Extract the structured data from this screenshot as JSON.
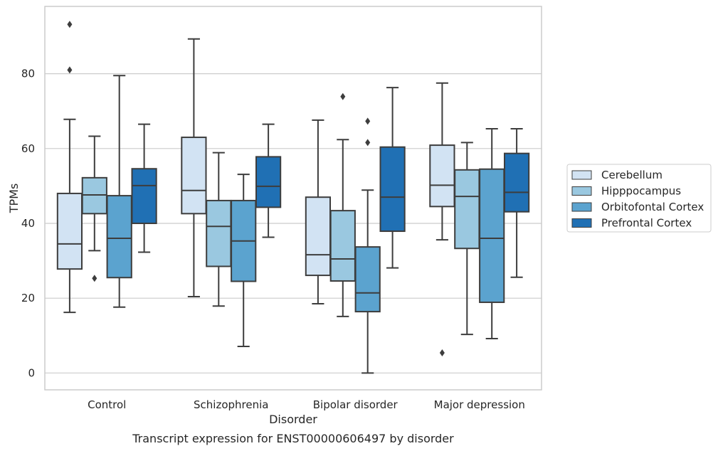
{
  "caption": "Transcript expression for ENST00000606497 by disorder",
  "colors": {
    "Cerebellum": "#d2e3f3",
    "Hipppocampus": "#9ac8e0",
    "Orbitofontal Cortex": "#5ba3cf",
    "Prefrontal Cortex": "#2070b4",
    "line": "#3d3d3d",
    "grid": "#cccccc"
  },
  "chart_data": {
    "type": "box",
    "title": "",
    "xlabel": "Disorder",
    "ylabel": "TPMs",
    "ylim": [
      -4.5,
      98
    ],
    "yticks": [
      0,
      20,
      40,
      60,
      80
    ],
    "grid": "horizontal",
    "legend_position": "right",
    "categories": [
      "Control",
      "Schizophrenia",
      "Bipolar disorder",
      "Major depression"
    ],
    "series": [
      {
        "name": "Cerebellum",
        "boxes": [
          {
            "whisker_low": 16.2,
            "q1": 27.8,
            "median": 34.5,
            "q3": 48.0,
            "whisker_high": 67.8,
            "outliers": [
              93.2,
              81.0
            ]
          },
          {
            "whisker_low": 20.4,
            "q1": 42.6,
            "median": 48.8,
            "q3": 63.0,
            "whisker_high": 89.3,
            "outliers": []
          },
          {
            "whisker_low": 18.5,
            "q1": 26.1,
            "median": 31.6,
            "q3": 47.0,
            "whisker_high": 67.6,
            "outliers": []
          },
          {
            "whisker_low": 35.6,
            "q1": 44.5,
            "median": 50.2,
            "q3": 60.9,
            "whisker_high": 77.5,
            "outliers": [
              5.4
            ]
          }
        ]
      },
      {
        "name": "Hipppocampus",
        "boxes": [
          {
            "whisker_low": 32.7,
            "q1": 42.6,
            "median": 47.6,
            "q3": 52.2,
            "whisker_high": 63.3,
            "outliers": [
              25.3
            ]
          },
          {
            "whisker_low": 17.9,
            "q1": 28.5,
            "median": 39.2,
            "q3": 46.1,
            "whisker_high": 58.9,
            "outliers": []
          },
          {
            "whisker_low": 15.1,
            "q1": 24.6,
            "median": 30.5,
            "q3": 43.4,
            "whisker_high": 62.4,
            "outliers": [
              73.9
            ]
          },
          {
            "whisker_low": 10.3,
            "q1": 33.3,
            "median": 47.2,
            "q3": 54.3,
            "whisker_high": 61.6,
            "outliers": []
          }
        ]
      },
      {
        "name": "Orbitofontal Cortex",
        "boxes": [
          {
            "whisker_low": 17.6,
            "q1": 25.5,
            "median": 36.0,
            "q3": 47.4,
            "whisker_high": 79.5,
            "outliers": []
          },
          {
            "whisker_low": 7.1,
            "q1": 24.5,
            "median": 35.3,
            "q3": 46.1,
            "whisker_high": 53.1,
            "outliers": []
          },
          {
            "whisker_low": 0.0,
            "q1": 16.4,
            "median": 21.4,
            "q3": 33.7,
            "whisker_high": 48.9,
            "outliers": [
              67.3,
              61.6
            ]
          },
          {
            "whisker_low": 9.2,
            "q1": 18.9,
            "median": 36.0,
            "q3": 54.5,
            "whisker_high": 65.3,
            "outliers": []
          }
        ]
      },
      {
        "name": "Prefrontal Cortex",
        "boxes": [
          {
            "whisker_low": 32.3,
            "q1": 40.0,
            "median": 50.1,
            "q3": 54.6,
            "whisker_high": 66.5,
            "outliers": []
          },
          {
            "whisker_low": 36.3,
            "q1": 44.3,
            "median": 49.9,
            "q3": 57.8,
            "whisker_high": 66.5,
            "outliers": []
          },
          {
            "whisker_low": 28.1,
            "q1": 37.9,
            "median": 47.0,
            "q3": 60.4,
            "whisker_high": 76.3,
            "outliers": []
          },
          {
            "whisker_low": 25.6,
            "q1": 43.1,
            "median": 48.3,
            "q3": 58.7,
            "whisker_high": 65.3,
            "outliers": []
          }
        ]
      }
    ]
  }
}
